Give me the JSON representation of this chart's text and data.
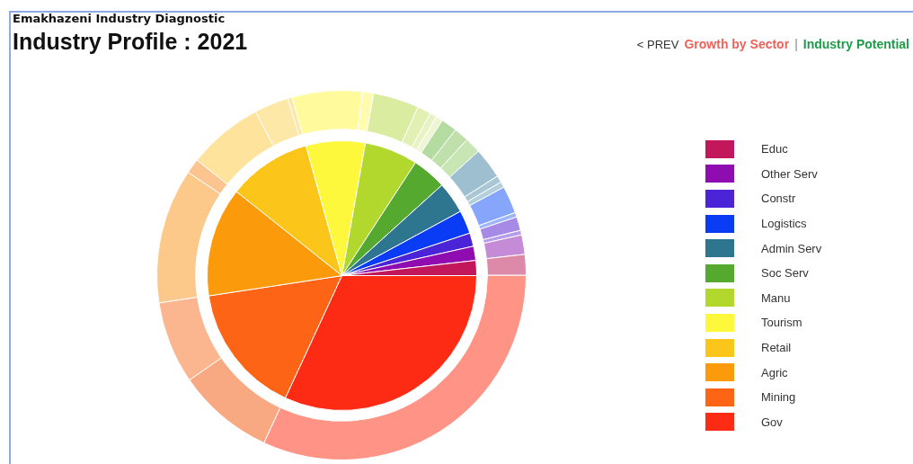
{
  "chart_data": [
    {
      "type": "pie",
      "subtitle": "Emakhazeni Industry Diagnostic",
      "title": "Industry Profile : 2021",
      "annotations": [
        "< PREV",
        "Growth by Sector",
        "|",
        "Industry Potential"
      ],
      "categories": [
        "Educ",
        "Other Serv",
        "Constr",
        "Logistics",
        "Admin Serv",
        "Soc Serv",
        "Manu",
        "Tourism",
        "Retail",
        "Agric",
        "Mining",
        "Gov"
      ],
      "values": [
        1.8,
        1.7,
        1.6,
        2.8,
        3.8,
        4.1,
        6.4,
        7.1,
        10.0,
        13.1,
        15.7,
        31.9
      ],
      "colors": [
        "#c2185b",
        "#8e0cb0",
        "#4a24d6",
        "#0a3cf5",
        "#2e7590",
        "#55a92f",
        "#b3d82d",
        "#fdf83c",
        "#fbc519",
        "#fb9a0a",
        "#fd6415",
        "#fe2b14"
      ],
      "legend": "right"
    },
    {
      "type": "donut",
      "categories": [
        null,
        null,
        null,
        null,
        null,
        null,
        null,
        null,
        null,
        null,
        null,
        null,
        null,
        null,
        null,
        null,
        null,
        null,
        null,
        null,
        null,
        null,
        null,
        null,
        null,
        null
      ],
      "values": [
        1.8,
        1.7,
        0.4,
        1.2,
        0.4,
        2.4,
        0.5,
        0.6,
        2.7,
        1.4,
        1.3,
        1.4,
        0.6,
        0.6,
        1.2,
        4.0,
        1.0,
        6.1,
        0.4,
        3.0,
        6.6,
        1.3,
        11.8,
        7.2,
        8.5,
        31.9
      ],
      "colors": [
        "#dc8aa8",
        "#c58bd6",
        "#b59de9",
        "#a78ae6",
        "#9db6fb",
        "#86a6fb",
        "#b3cfdb",
        "#a9c7d5",
        "#9ebfcf",
        "#c8e6b4",
        "#bfe0aa",
        "#b5dca0",
        "#eef6d3",
        "#e8f3c4",
        "#e2f0b4",
        "#d9eca0",
        "#fffcb0",
        "#fffb9c",
        "#fde8a8",
        "#fde8a8",
        "#fde39c",
        "#fcc590",
        "#fdc98b",
        "#fbb58f",
        "#f9a982",
        "#ff9486"
      ]
    }
  ]
}
